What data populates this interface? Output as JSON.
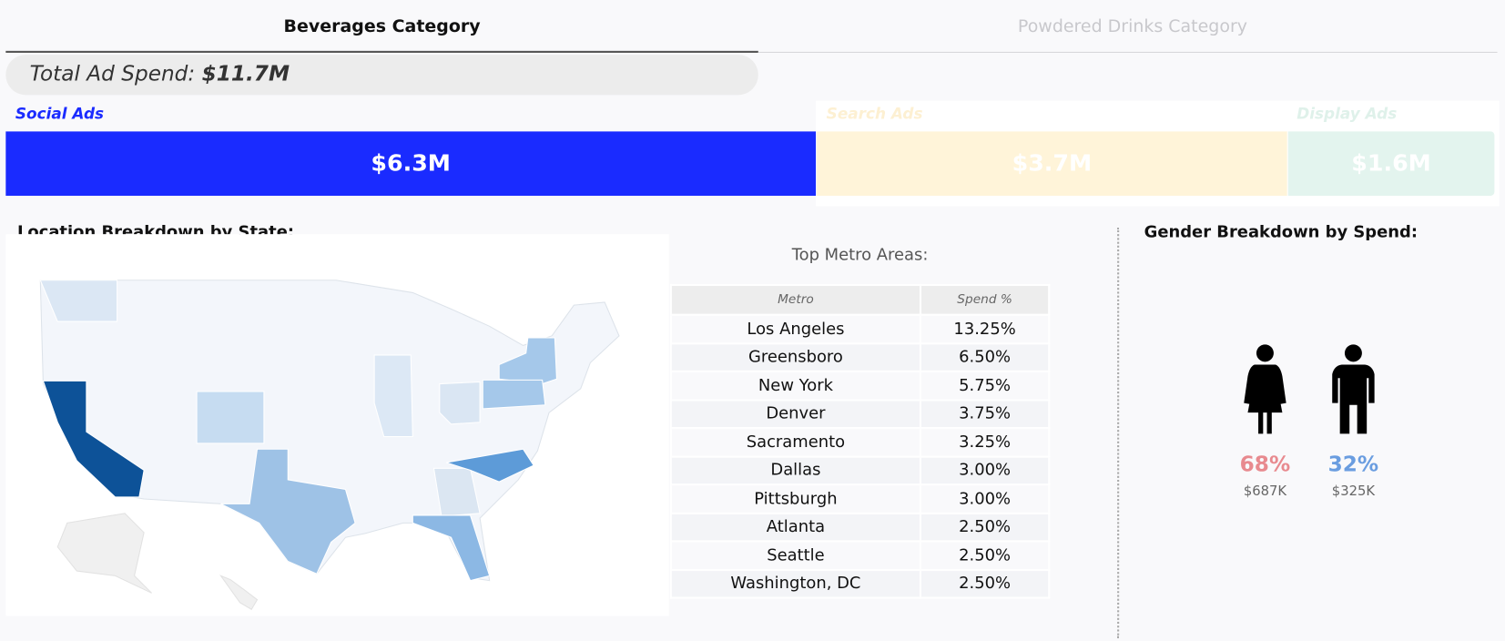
{
  "tabs": [
    {
      "label": "Beverages Category"
    },
    {
      "label": "Powdered Drinks Category"
    }
  ],
  "total": {
    "label": "Total Ad Spend:",
    "value": "$11.7M"
  },
  "channels": [
    {
      "name": "Social Ads",
      "value": "$6.3M"
    },
    {
      "name": "Search Ads",
      "value": "$3.7M"
    },
    {
      "name": "Display Ads",
      "value": "$1.6M"
    }
  ],
  "location": {
    "title": "Location Breakdown by State:"
  },
  "metro": {
    "title": "Top Metro Areas:",
    "columns": [
      "Metro",
      "Spend %"
    ],
    "rows": [
      [
        "Los Angeles",
        "13.25%"
      ],
      [
        "Greensboro",
        "6.50%"
      ],
      [
        "New York",
        "5.75%"
      ],
      [
        "Denver",
        "3.75%"
      ],
      [
        "Sacramento",
        "3.25%"
      ],
      [
        "Dallas",
        "3.00%"
      ],
      [
        "Pittsburgh",
        "3.00%"
      ],
      [
        "Atlanta",
        "2.50%"
      ],
      [
        "Seattle",
        "2.50%"
      ],
      [
        "Washington, DC",
        "2.50%"
      ]
    ]
  },
  "gender": {
    "title": "Gender Breakdown by Spend:",
    "female": {
      "share": "68%",
      "spend": "$687K"
    },
    "male": {
      "share": "32%",
      "spend": "$325K"
    }
  }
}
